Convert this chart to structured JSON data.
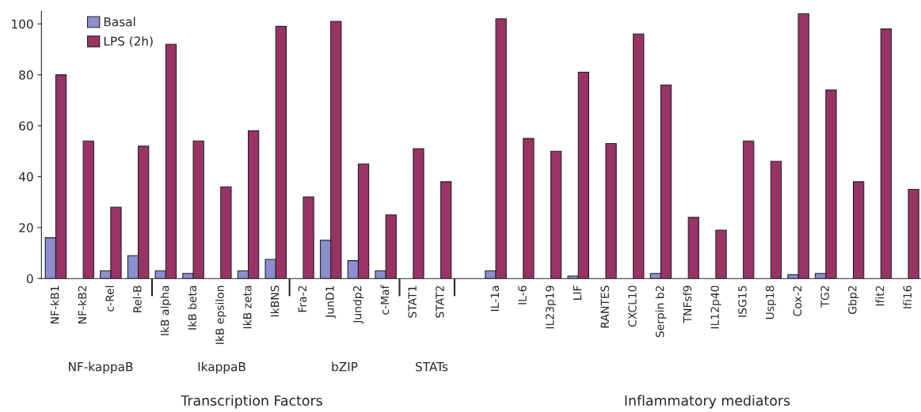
{
  "chart_data": {
    "type": "bar",
    "categories": [
      "NF-kB1",
      "NF-kB2",
      "c-Rel",
      "Rel-B",
      "IkB alpha",
      "IkB beta",
      "IkB epsilon",
      "IkB zeta",
      "IkBNS",
      "Fra-2",
      "JunD1",
      "Jundp2",
      "c-Maf",
      "STAT1",
      "STAT2",
      null,
      "IL-1a",
      "IL-6",
      "IL23p19",
      "LIF",
      "RANTES",
      "CXCL10",
      "Serpin b2",
      "TNFsf9",
      "IL12p40",
      "ISG15",
      "Usp18",
      "Cox-2",
      "TG2",
      "Gbp2",
      "Ifit2",
      "Ifi16"
    ],
    "series": [
      {
        "name": "Basal",
        "color": "#8b8fd0",
        "values": [
          16,
          null,
          3,
          9,
          3,
          2,
          null,
          3,
          7.5,
          null,
          15,
          7,
          3,
          null,
          null,
          null,
          3,
          null,
          null,
          1,
          null,
          null,
          2,
          null,
          null,
          null,
          null,
          1.5,
          2,
          null,
          null,
          null
        ]
      },
      {
        "name": "LPS (2h)",
        "color": "#993366",
        "values": [
          80,
          54,
          28,
          52,
          92,
          54,
          36,
          58,
          99,
          32,
          101,
          45,
          25,
          51,
          38,
          null,
          102,
          55,
          50,
          81,
          53,
          96,
          76,
          24,
          19,
          54,
          46,
          104,
          74,
          38,
          98,
          35
        ]
      }
    ],
    "ylim": [
      0,
      105
    ],
    "yticks": [
      0,
      20,
      40,
      60,
      80,
      100
    ],
    "annotations": [
      "NF-kappaB",
      "IkappaB",
      "bZIP",
      "STATs",
      "Transcription Factors",
      "Inflammatory mediators"
    ],
    "legend": "top left",
    "grid": false
  }
}
